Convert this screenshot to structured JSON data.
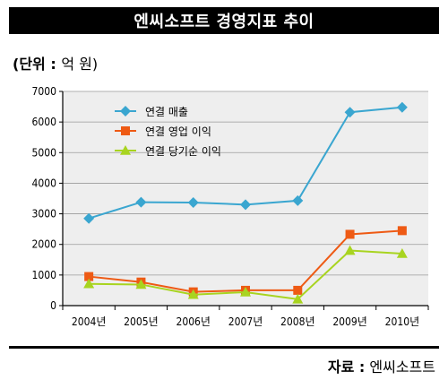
{
  "title": "엔씨소프트 경영지표 추이",
  "unit_label": "(단위 :",
  "unit_value": "억 원)",
  "source_label": "자료 :",
  "source_value": "엔씨소프트",
  "colors": {
    "series_1": "#3aa6d0",
    "series_2": "#ee5a14",
    "series_3": "#a8d420",
    "axis": "#000000",
    "grid": "#9a9a9a",
    "plot_bg": "#eeeeee"
  },
  "chart_data": {
    "type": "line",
    "categories": [
      "2004년",
      "2005년",
      "2006년",
      "2007년",
      "2008년",
      "2009년",
      "2010년"
    ],
    "ylim": [
      0,
      7000
    ],
    "yticks": [
      0,
      1000,
      2000,
      3000,
      4000,
      5000,
      6000,
      7000
    ],
    "grid": "horizontal",
    "legend_position": "top-left",
    "series": [
      {
        "name": "연결 매출",
        "marker": "diamond",
        "values": [
          2850,
          3380,
          3370,
          3300,
          3430,
          6320,
          6480
        ]
      },
      {
        "name": "연결 영업 이익",
        "marker": "square",
        "values": [
          950,
          770,
          450,
          500,
          500,
          2330,
          2450
        ]
      },
      {
        "name": "연결 당기순 이익",
        "marker": "triangle",
        "values": [
          710,
          690,
          360,
          440,
          210,
          1800,
          1700
        ]
      }
    ]
  }
}
